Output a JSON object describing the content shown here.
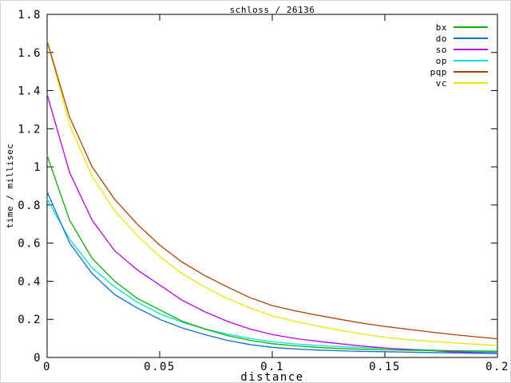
{
  "title": "schloss / 26136",
  "chart_data": {
    "type": "line",
    "title": "schloss / 26136",
    "xlabel": "distance",
    "ylabel": "time / millisec",
    "xlim": [
      0,
      0.2
    ],
    "ylim": [
      0,
      1.8
    ],
    "xticks": [
      0,
      0.05,
      0.1,
      0.15,
      0.2
    ],
    "xtick_labels": [
      "0",
      "0.05",
      "0.1",
      "0.15",
      "0.2"
    ],
    "yticks": [
      0,
      0.2,
      0.4,
      0.6,
      0.8,
      1.0,
      1.2,
      1.4,
      1.6,
      1.8
    ],
    "ytick_labels": [
      "0",
      "0.2",
      "0.4",
      "0.6",
      "0.8",
      "1",
      "1.2",
      "1.4",
      "1.6",
      "1.8"
    ],
    "grid": false,
    "legend_position": "top-right-inside",
    "x": [
      0,
      0.01,
      0.02,
      0.03,
      0.04,
      0.05,
      0.06,
      0.07,
      0.08,
      0.09,
      0.1,
      0.11,
      0.12,
      0.13,
      0.14,
      0.15,
      0.16,
      0.17,
      0.18,
      0.19,
      0.2
    ],
    "series": [
      {
        "name": "bx",
        "color": "#00b400",
        "values": [
          1.06,
          0.72,
          0.52,
          0.4,
          0.31,
          0.25,
          0.19,
          0.15,
          0.115,
          0.09,
          0.072,
          0.061,
          0.053,
          0.047,
          0.043,
          0.04,
          0.038,
          0.036,
          0.035,
          0.034,
          0.033
        ]
      },
      {
        "name": "do",
        "color": "#0a70d8",
        "values": [
          0.87,
          0.6,
          0.44,
          0.33,
          0.26,
          0.2,
          0.155,
          0.12,
          0.09,
          0.068,
          0.053,
          0.045,
          0.039,
          0.035,
          0.032,
          0.03,
          0.028,
          0.026,
          0.024,
          0.022,
          0.021
        ]
      },
      {
        "name": "so",
        "color": "#c000e8",
        "values": [
          1.38,
          0.97,
          0.72,
          0.56,
          0.46,
          0.38,
          0.3,
          0.24,
          0.19,
          0.15,
          0.12,
          0.1,
          0.085,
          0.072,
          0.06,
          0.05,
          0.042,
          0.036,
          0.03,
          0.026,
          0.022
        ]
      },
      {
        "name": "op",
        "color": "#00e0e0",
        "values": [
          0.83,
          0.62,
          0.47,
          0.37,
          0.29,
          0.23,
          0.185,
          0.15,
          0.123,
          0.1,
          0.082,
          0.071,
          0.063,
          0.057,
          0.052,
          0.048,
          0.043,
          0.039,
          0.035,
          0.031,
          0.028
        ]
      },
      {
        "name": "pqp",
        "color": "#b04000",
        "values": [
          1.66,
          1.26,
          1.0,
          0.83,
          0.7,
          0.59,
          0.5,
          0.43,
          0.37,
          0.315,
          0.272,
          0.245,
          0.222,
          0.2,
          0.18,
          0.163,
          0.148,
          0.134,
          0.121,
          0.109,
          0.098
        ]
      },
      {
        "name": "vc",
        "color": "#e8e800",
        "values": [
          1.66,
          1.22,
          0.95,
          0.77,
          0.64,
          0.53,
          0.44,
          0.37,
          0.31,
          0.26,
          0.218,
          0.19,
          0.165,
          0.143,
          0.123,
          0.105,
          0.094,
          0.085,
          0.077,
          0.07,
          0.063
        ]
      }
    ]
  }
}
